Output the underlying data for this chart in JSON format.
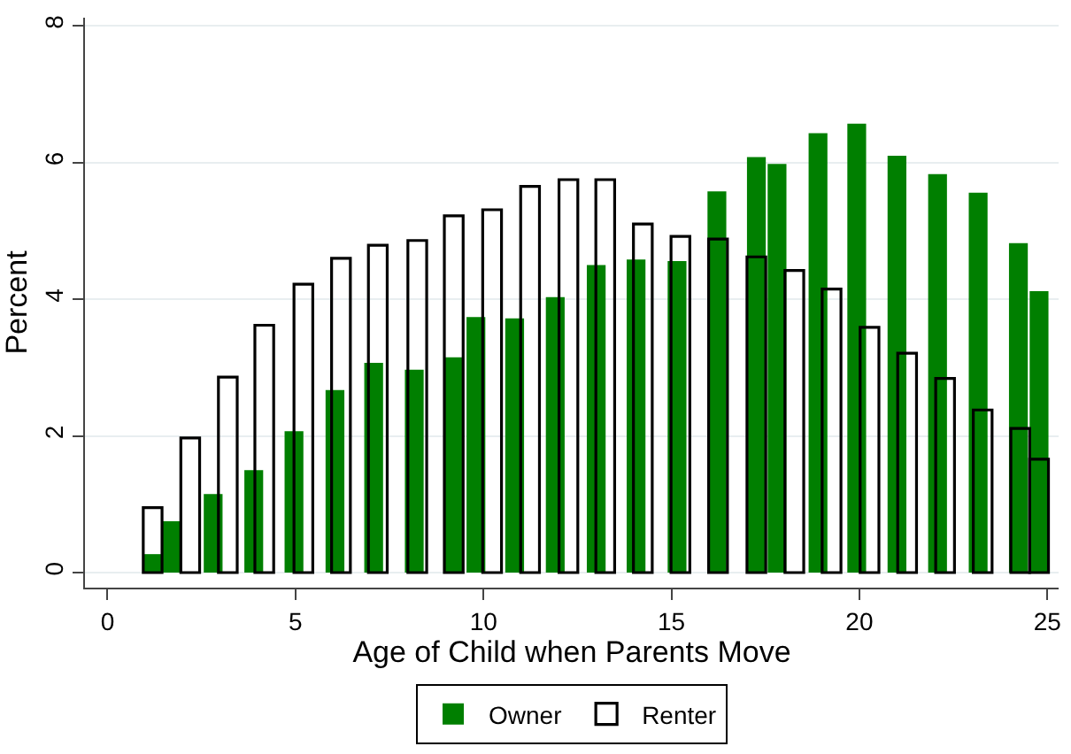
{
  "chart_data": {
    "type": "bar",
    "xlabel": "Age of Child when Parents Move",
    "ylabel": "Percent",
    "xlim": [
      -0.6,
      25.3
    ],
    "xticks": [
      0,
      5,
      10,
      15,
      20,
      25
    ],
    "ylim": [
      -0.22,
      8.12
    ],
    "yticks": [
      0,
      2,
      4,
      6,
      8
    ],
    "grid": "y",
    "legend": "bottom",
    "series": [
      {
        "name": "Owner",
        "color": "#007f00",
        "x": [
          1.2,
          1.7,
          2.81,
          3.89,
          4.96,
          6.05,
          7.08,
          8.16,
          9.21,
          9.8,
          10.83,
          11.91,
          13.0,
          14.06,
          15.15,
          16.21,
          17.26,
          17.81,
          18.9,
          19.93,
          21.0,
          22.08,
          23.16,
          24.23,
          24.78
        ],
        "values": [
          0.27,
          0.75,
          1.15,
          1.5,
          2.07,
          2.67,
          3.07,
          2.97,
          3.15,
          3.74,
          3.72,
          4.03,
          4.5,
          4.58,
          4.56,
          5.58,
          6.08,
          5.98,
          6.43,
          6.57,
          6.1,
          5.83,
          5.56,
          4.82,
          4.12
        ]
      },
      {
        "name": "Renter",
        "color": "#000000",
        "x": [
          1.2,
          2.2,
          3.2,
          4.17,
          5.21,
          6.21,
          7.19,
          8.24,
          9.21,
          10.23,
          11.24,
          12.26,
          13.24,
          14.24,
          15.24,
          16.24,
          17.26,
          18.27,
          19.26,
          20.27,
          21.27,
          22.28,
          23.28,
          24.28,
          24.78
        ],
        "values": [
          0.95,
          1.97,
          2.86,
          3.62,
          4.22,
          4.6,
          4.79,
          4.86,
          5.22,
          5.31,
          5.65,
          5.75,
          5.75,
          5.1,
          4.92,
          4.88,
          4.62,
          4.42,
          4.15,
          3.59,
          3.21,
          2.84,
          2.38,
          2.11,
          1.66
        ]
      }
    ]
  }
}
